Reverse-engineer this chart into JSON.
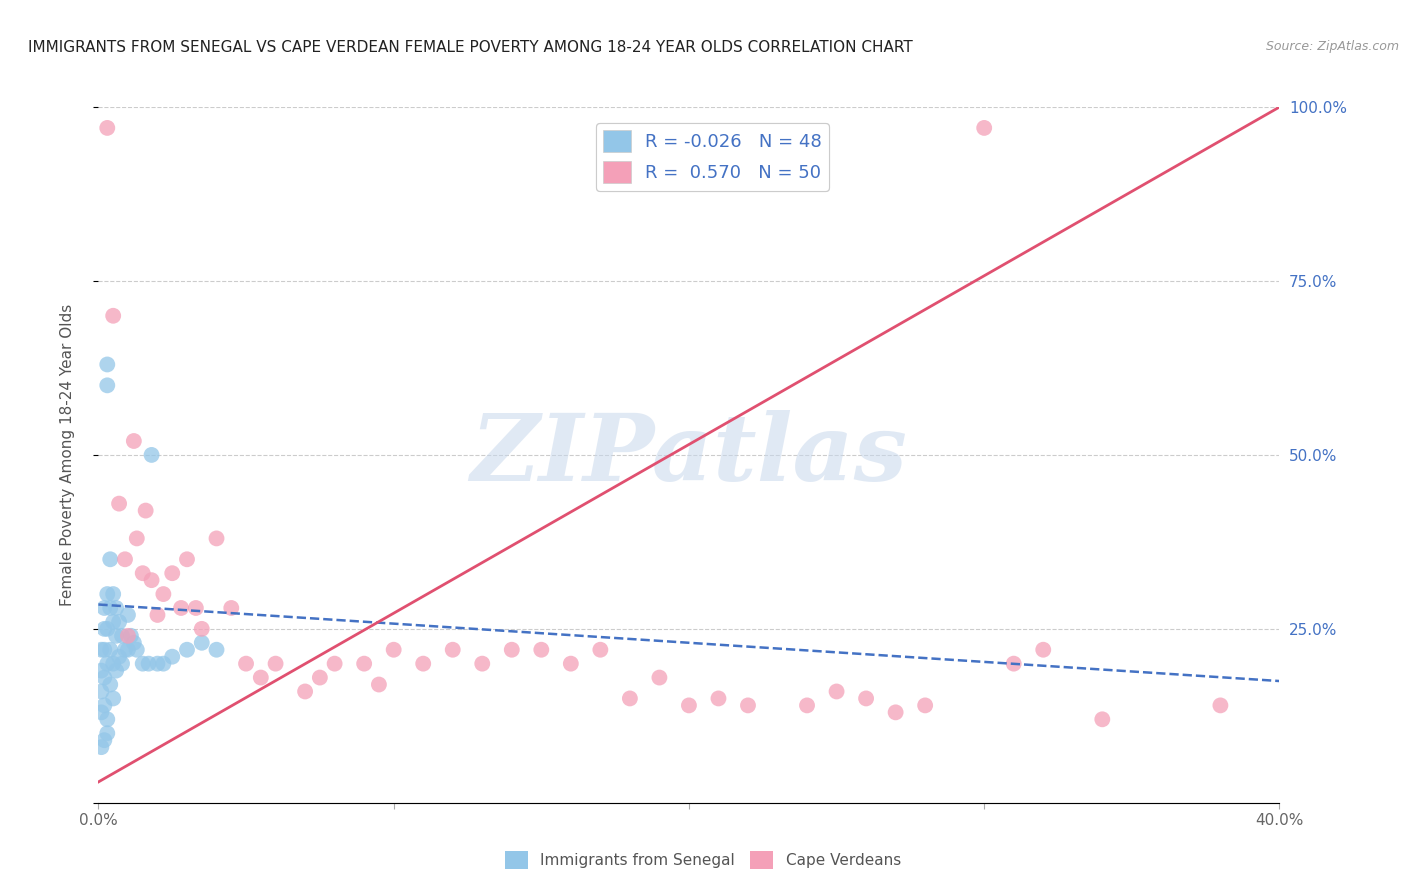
{
  "title": "IMMIGRANTS FROM SENEGAL VS CAPE VERDEAN FEMALE POVERTY AMONG 18-24 YEAR OLDS CORRELATION CHART",
  "source": "Source: ZipAtlas.com",
  "ylabel": "Female Poverty Among 18-24 Year Olds",
  "xlabel_blue": "Immigrants from Senegal",
  "xlabel_pink": "Cape Verdeans",
  "legend_blue_R": "R = -0.026",
  "legend_blue_N": "N = 48",
  "legend_pink_R": "R =  0.570",
  "legend_pink_N": "N = 50",
  "xlim": [
    0.0,
    0.4
  ],
  "ylim": [
    0.0,
    1.0
  ],
  "blue_color": "#93C6E8",
  "pink_color": "#F4A0B8",
  "blue_line_color": "#4472C4",
  "pink_line_color": "#E05070",
  "watermark": "ZIPatlas",
  "watermark_color": "#C8D8EC",
  "blue_line_x0": 0.0,
  "blue_line_y0": 0.285,
  "blue_line_x1": 0.4,
  "blue_line_y1": 0.175,
  "pink_line_x0": 0.0,
  "pink_line_y0": 0.03,
  "pink_line_x1": 0.4,
  "pink_line_y1": 1.0,
  "blue_dots_x": [
    0.001,
    0.001,
    0.001,
    0.001,
    0.001,
    0.002,
    0.002,
    0.002,
    0.002,
    0.002,
    0.002,
    0.003,
    0.003,
    0.003,
    0.003,
    0.003,
    0.004,
    0.004,
    0.004,
    0.004,
    0.005,
    0.005,
    0.005,
    0.005,
    0.006,
    0.006,
    0.006,
    0.007,
    0.007,
    0.008,
    0.008,
    0.009,
    0.01,
    0.01,
    0.011,
    0.012,
    0.013,
    0.015,
    0.017,
    0.018,
    0.02,
    0.022,
    0.025,
    0.03,
    0.035,
    0.04,
    0.003,
    0.003
  ],
  "blue_dots_y": [
    0.22,
    0.19,
    0.16,
    0.13,
    0.08,
    0.28,
    0.25,
    0.22,
    0.18,
    0.14,
    0.09,
    0.63,
    0.6,
    0.3,
    0.25,
    0.2,
    0.35,
    0.28,
    0.22,
    0.17,
    0.3,
    0.26,
    0.2,
    0.15,
    0.28,
    0.24,
    0.19,
    0.26,
    0.21,
    0.24,
    0.2,
    0.22,
    0.27,
    0.22,
    0.24,
    0.23,
    0.22,
    0.2,
    0.2,
    0.5,
    0.2,
    0.2,
    0.21,
    0.22,
    0.23,
    0.22,
    0.12,
    0.1
  ],
  "pink_dots_x": [
    0.003,
    0.005,
    0.007,
    0.009,
    0.01,
    0.012,
    0.013,
    0.015,
    0.016,
    0.018,
    0.02,
    0.022,
    0.025,
    0.028,
    0.03,
    0.033,
    0.035,
    0.04,
    0.045,
    0.05,
    0.055,
    0.06,
    0.07,
    0.075,
    0.08,
    0.09,
    0.095,
    0.1,
    0.11,
    0.12,
    0.13,
    0.14,
    0.15,
    0.16,
    0.17,
    0.18,
    0.19,
    0.2,
    0.21,
    0.22,
    0.24,
    0.25,
    0.26,
    0.27,
    0.28,
    0.3,
    0.31,
    0.32,
    0.34,
    0.38
  ],
  "pink_dots_y": [
    0.97,
    0.7,
    0.43,
    0.35,
    0.24,
    0.52,
    0.38,
    0.33,
    0.42,
    0.32,
    0.27,
    0.3,
    0.33,
    0.28,
    0.35,
    0.28,
    0.25,
    0.38,
    0.28,
    0.2,
    0.18,
    0.2,
    0.16,
    0.18,
    0.2,
    0.2,
    0.17,
    0.22,
    0.2,
    0.22,
    0.2,
    0.22,
    0.22,
    0.2,
    0.22,
    0.15,
    0.18,
    0.14,
    0.15,
    0.14,
    0.14,
    0.16,
    0.15,
    0.13,
    0.14,
    0.97,
    0.2,
    0.22,
    0.12,
    0.14
  ]
}
